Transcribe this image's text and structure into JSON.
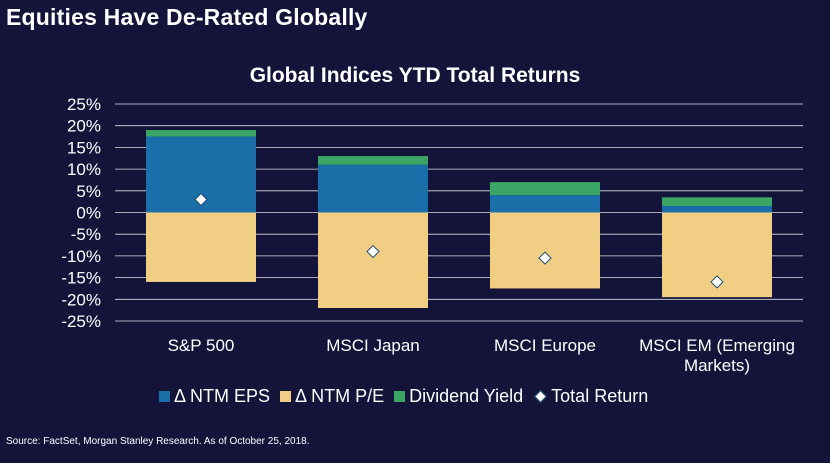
{
  "page_title": "Equities Have De-Rated Globally",
  "source_note": "Source: FactSet, Morgan Stanley Research. As of October 25, 2018.",
  "colors": {
    "background": "#14143a",
    "eps": "#1a6fa8",
    "pe": "#f0cf84",
    "dividend": "#3aa565",
    "total_marker": "#ffffff",
    "grid": "#ffffff"
  },
  "chart_data": {
    "type": "bar",
    "stacked": true,
    "title": "Global Indices YTD Total Returns",
    "categories": [
      "S&P 500",
      "MSCI Japan",
      "MSCI Europe",
      "MSCI EM (Emerging Markets)"
    ],
    "category_lines": [
      [
        "S&P 500"
      ],
      [
        "MSCI Japan"
      ],
      [
        "MSCI Europe"
      ],
      [
        "MSCI EM (Emerging",
        "Markets)"
      ]
    ],
    "ylim": [
      -25,
      25
    ],
    "yticks": [
      -25,
      -20,
      -15,
      -10,
      -5,
      0,
      5,
      10,
      15,
      20,
      25
    ],
    "ytick_labels": [
      "-25%",
      "-20%",
      "-15%",
      "-10%",
      "-5%",
      "0%",
      "5%",
      "10%",
      "15%",
      "20%",
      "25%"
    ],
    "grid": true,
    "legend_position": "bottom",
    "series": [
      {
        "name": "Δ NTM EPS",
        "key": "eps",
        "values": [
          17.5,
          11.0,
          4.0,
          1.5
        ]
      },
      {
        "name": "Δ NTM P/E",
        "key": "pe",
        "values": [
          -16.0,
          -22.0,
          -17.5,
          -19.5
        ]
      },
      {
        "name": "Dividend Yield",
        "key": "dividend",
        "values": [
          1.5,
          2.0,
          3.0,
          2.0
        ]
      }
    ],
    "total_return": {
      "name": "Total Return",
      "values": [
        3.0,
        -9.0,
        -10.5,
        -16.0
      ]
    }
  }
}
